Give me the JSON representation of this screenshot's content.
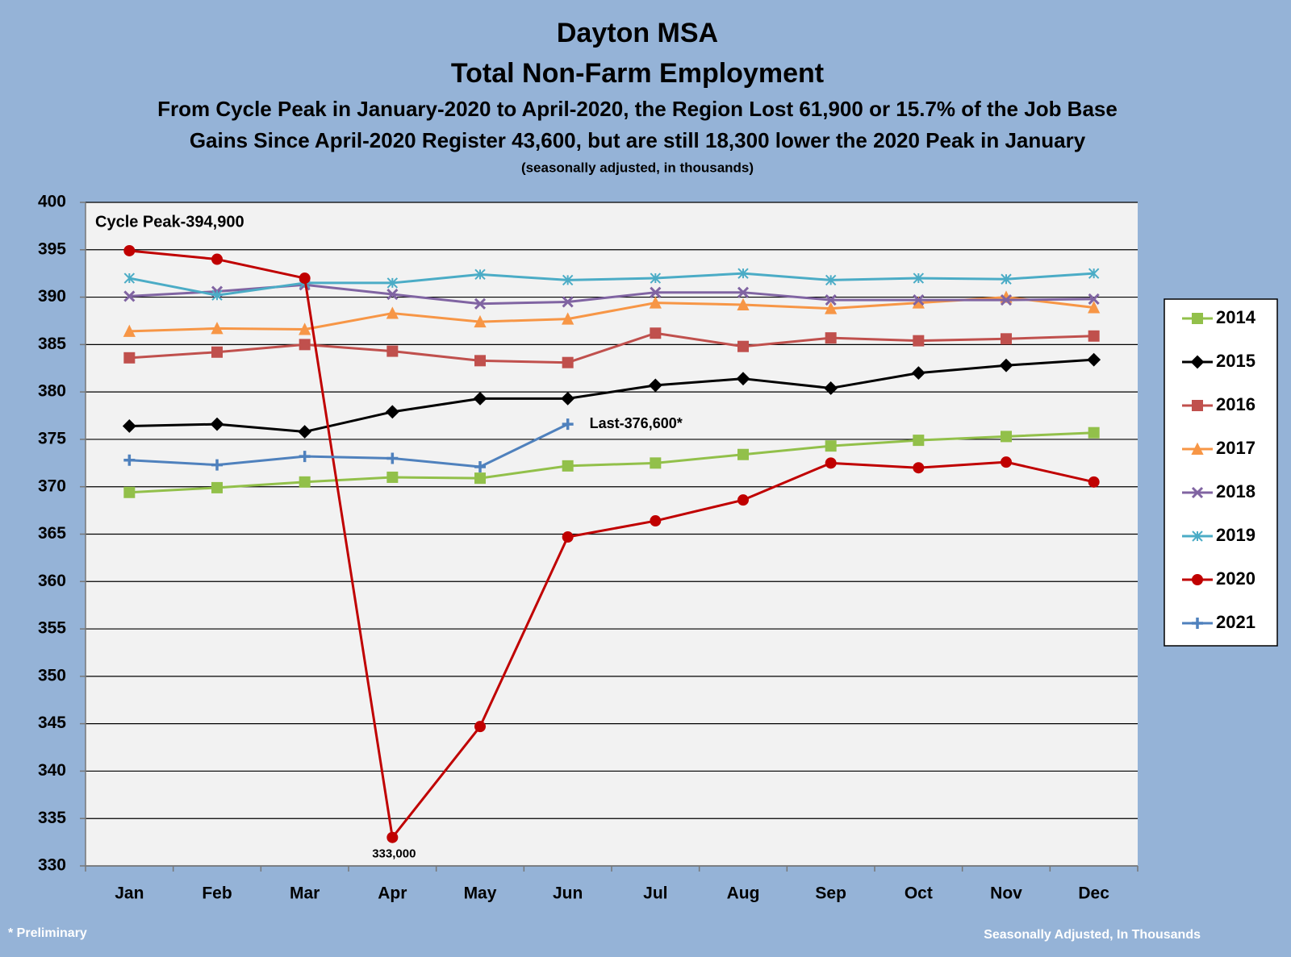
{
  "chart_data": {
    "type": "line",
    "title": [
      "Dayton MSA",
      "Total Non-Farm Employment"
    ],
    "subtitle": [
      "From Cycle Peak in January-2020 to April-2020, the Region Lost 61,900 or 15.7% of the Job Base",
      "Gains Since April-2020 Register 43,600, but are still 18,300 lower the 2020 Peak in January"
    ],
    "note": "(seasonally adjusted, in thousands)",
    "annotations": [
      "Cycle Peak-394,900",
      "Last-376,600*",
      "333,000"
    ],
    "footnotes": [
      "* Preliminary",
      "Seasonally Adjusted, In Thousands"
    ],
    "categories": [
      "Jan",
      "Feb",
      "Mar",
      "Apr",
      "May",
      "Jun",
      "Jul",
      "Aug",
      "Sep",
      "Oct",
      "Nov",
      "Dec"
    ],
    "ylim": [
      330,
      400
    ],
    "yticks": [
      330,
      335,
      340,
      345,
      350,
      355,
      360,
      365,
      370,
      375,
      380,
      385,
      390,
      395,
      400
    ],
    "grid": true,
    "legend": "right",
    "series": [
      {
        "name": "2014",
        "color": "#92c04a",
        "marker": "square",
        "values": [
          369.4,
          369.9,
          370.5,
          371.0,
          370.9,
          372.2,
          372.5,
          373.4,
          374.3,
          374.9,
          375.3,
          375.7
        ]
      },
      {
        "name": "2015",
        "color": "#000000",
        "marker": "diamond",
        "values": [
          376.4,
          376.6,
          375.8,
          377.9,
          379.3,
          379.3,
          380.7,
          381.4,
          380.4,
          382.0,
          382.8,
          383.4
        ]
      },
      {
        "name": "2016",
        "color": "#c0504d",
        "marker": "square",
        "values": [
          383.6,
          384.2,
          385.0,
          384.3,
          383.3,
          383.1,
          386.2,
          384.8,
          385.7,
          385.4,
          385.6,
          385.9
        ]
      },
      {
        "name": "2017",
        "color": "#f79646",
        "marker": "triangle",
        "values": [
          386.4,
          386.7,
          386.6,
          388.3,
          387.4,
          387.7,
          389.4,
          389.2,
          388.8,
          389.4,
          390.0,
          388.9
        ]
      },
      {
        "name": "2018",
        "color": "#8064a2",
        "marker": "x",
        "values": [
          390.1,
          390.6,
          391.3,
          390.3,
          389.3,
          389.5,
          390.5,
          390.5,
          389.7,
          389.7,
          389.7,
          389.8
        ]
      },
      {
        "name": "2019",
        "color": "#4bacc6",
        "marker": "asterisk",
        "values": [
          392.0,
          390.2,
          391.5,
          391.5,
          392.4,
          391.8,
          392.0,
          392.5,
          391.8,
          392.0,
          391.9,
          392.5
        ]
      },
      {
        "name": "2020",
        "color": "#c00000",
        "marker": "circle",
        "values": [
          394.9,
          394.0,
          392.0,
          333.0,
          344.7,
          364.7,
          366.4,
          368.6,
          372.5,
          372.0,
          372.6,
          370.5
        ]
      },
      {
        "name": "2021",
        "color": "#4f81bd",
        "marker": "plus",
        "values": [
          372.8,
          372.3,
          373.2,
          373.0,
          372.1,
          376.6,
          null,
          null,
          null,
          null,
          null,
          null
        ]
      }
    ]
  }
}
